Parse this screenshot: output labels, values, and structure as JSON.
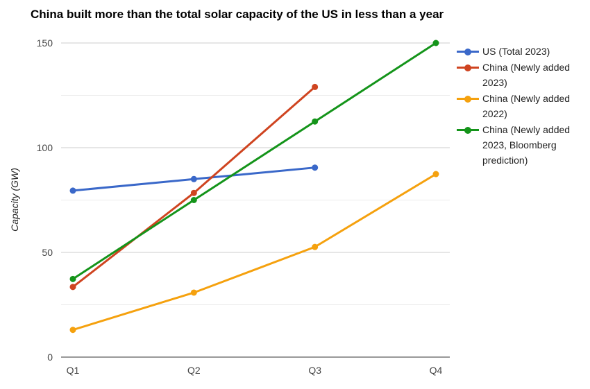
{
  "chart_data": {
    "type": "line",
    "title": "China built more than the total solar capacity of the US in less than a year",
    "xlabel": "",
    "ylabel": "Capacity (GW)",
    "categories": [
      "Q1",
      "Q2",
      "Q3",
      "Q4"
    ],
    "ylim": [
      0,
      150
    ],
    "yticks": [
      0,
      50,
      100,
      150
    ],
    "grid": true,
    "legend_position": "right",
    "series": [
      {
        "name": "US (Total 2023)",
        "color": "#3a68c9",
        "values": [
          79.5,
          85,
          90.5,
          null
        ]
      },
      {
        "name": "China (Newly added 2023)",
        "color": "#cf4420",
        "values": [
          33.5,
          78.4,
          129,
          null
        ]
      },
      {
        "name": "China (Newly added 2022)",
        "color": "#f5a10e",
        "values": [
          13,
          30.8,
          52.6,
          87.4
        ]
      },
      {
        "name": "China (Newly added 2023, Bloomberg prediction)",
        "color": "#14941a",
        "values": [
          37.3,
          75,
          112.5,
          150
        ]
      }
    ]
  }
}
